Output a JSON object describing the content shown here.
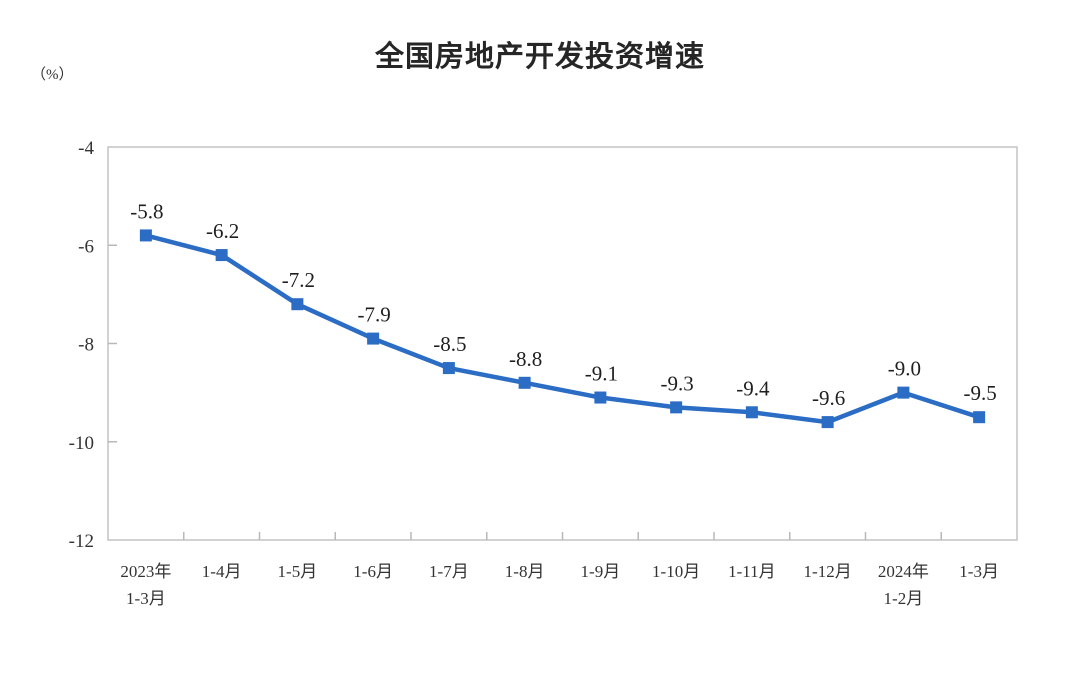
{
  "header": {
    "title": "全国房地产开发投资增速",
    "unit_label": "（%）"
  },
  "chart_data": {
    "type": "line",
    "title": "全国房地产开发投资增速",
    "ylabel": "（%）",
    "xlabel": "",
    "categories": [
      [
        "2023年",
        "1-3月"
      ],
      [
        "1-4月"
      ],
      [
        "1-5月"
      ],
      [
        "1-6月"
      ],
      [
        "1-7月"
      ],
      [
        "1-8月"
      ],
      [
        "1-9月"
      ],
      [
        "1-10月"
      ],
      [
        "1-11月"
      ],
      [
        "1-12月"
      ],
      [
        "2024年",
        "1-2月"
      ],
      [
        "1-3月"
      ]
    ],
    "series": [
      {
        "name": "全国房地产开发投资增速",
        "values": [
          -5.8,
          -6.2,
          -7.2,
          -7.9,
          -8.5,
          -8.8,
          -9.1,
          -9.3,
          -9.4,
          -9.6,
          -9.0,
          -9.5
        ],
        "data_labels": [
          "-5.8",
          "-6.2",
          "-7.2",
          "-7.9",
          "-8.5",
          "-8.8",
          "-9.1",
          "-9.3",
          "-9.4",
          "-9.6",
          "-9.0",
          "-9.5"
        ]
      }
    ],
    "ylim": [
      -12,
      -4
    ],
    "yticks": [
      -4,
      -6,
      -8,
      -10,
      -12
    ],
    "ytick_labels": [
      "-4",
      "-6",
      "-8",
      "-10",
      "-12"
    ],
    "grid": false,
    "legend": false,
    "marker": "square",
    "colors": {
      "line": "#2B6CC4",
      "marker": "#2B6CC4",
      "axis_border": "#c3c3c3",
      "tick_mark": "#b8b8b8",
      "data_label_text": "#1f1f1f",
      "axis_text": "#333333",
      "title_text": "#262626",
      "background": "#ffffff"
    }
  }
}
